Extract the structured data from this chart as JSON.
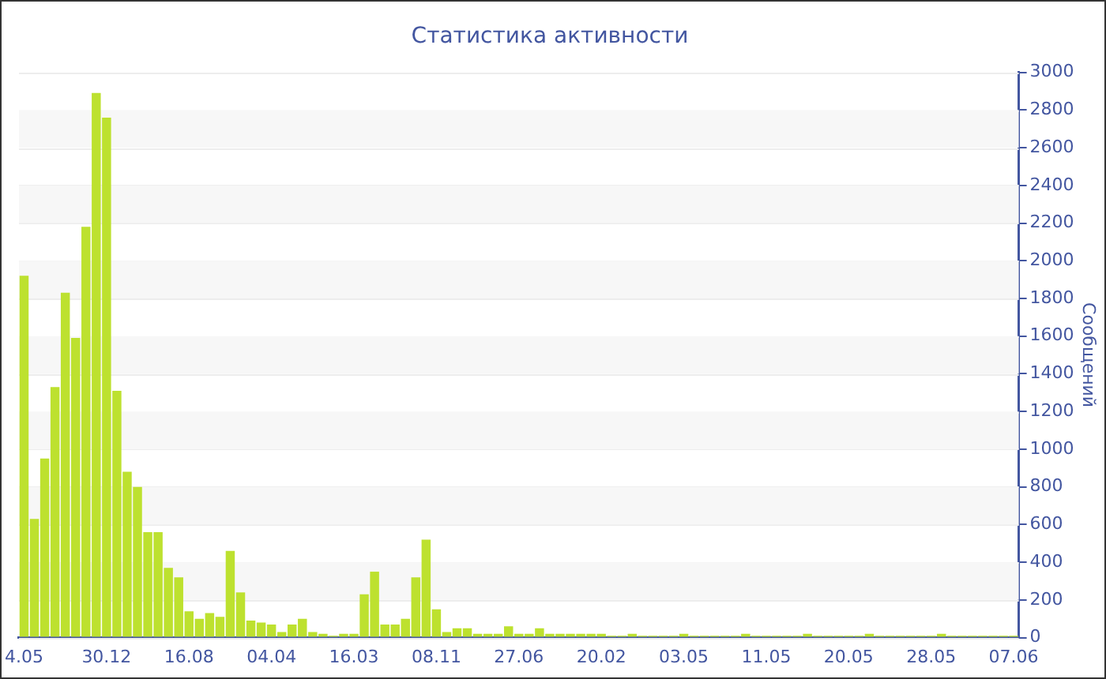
{
  "chart_data": {
    "type": "bar",
    "title": "Статистика активности",
    "ylabel": "Сообщений",
    "categories": [
      "4.05",
      null,
      null,
      null,
      null,
      null,
      null,
      null,
      "30.12",
      null,
      null,
      null,
      null,
      null,
      null,
      null,
      "16.08",
      null,
      null,
      null,
      null,
      null,
      null,
      null,
      "04.04",
      null,
      null,
      null,
      null,
      null,
      null,
      null,
      "16.03",
      null,
      null,
      null,
      null,
      null,
      null,
      null,
      "08.11",
      null,
      null,
      null,
      null,
      null,
      null,
      null,
      "27.06",
      null,
      null,
      null,
      null,
      null,
      null,
      null,
      "20.02",
      null,
      null,
      null,
      null,
      null,
      null,
      null,
      "03.05",
      null,
      null,
      null,
      null,
      null,
      null,
      null,
      "11.05",
      null,
      null,
      null,
      null,
      null,
      null,
      null,
      "20.05",
      null,
      null,
      null,
      null,
      null,
      null,
      null,
      "28.05",
      null,
      null,
      null,
      null,
      null,
      null,
      null,
      "07.06"
    ],
    "values": [
      1920,
      630,
      950,
      1330,
      1830,
      1590,
      2180,
      2890,
      2760,
      1310,
      880,
      800,
      560,
      560,
      370,
      320,
      140,
      100,
      130,
      110,
      460,
      240,
      90,
      80,
      70,
      30,
      70,
      100,
      30,
      20,
      10,
      20,
      20,
      230,
      350,
      70,
      70,
      100,
      320,
      520,
      150,
      30,
      50,
      50,
      20,
      20,
      20,
      60,
      20,
      20,
      50,
      20,
      20,
      20,
      20,
      20,
      20,
      10,
      10,
      20,
      10,
      10,
      10,
      10,
      20,
      10,
      10,
      10,
      10,
      10,
      20,
      10,
      10,
      10,
      10,
      10,
      20,
      10,
      10,
      10,
      10,
      10,
      20,
      10,
      10,
      10,
      10,
      10,
      10,
      20,
      10,
      10,
      10,
      10,
      10,
      10,
      10
    ],
    "color": "#bde12f",
    "ylim": [
      0,
      3000
    ],
    "yticks": [
      0,
      200,
      400,
      600,
      800,
      1000,
      1200,
      1400,
      1600,
      1800,
      2000,
      2200,
      2400,
      2600,
      2800,
      3000
    ],
    "grid": "y"
  }
}
